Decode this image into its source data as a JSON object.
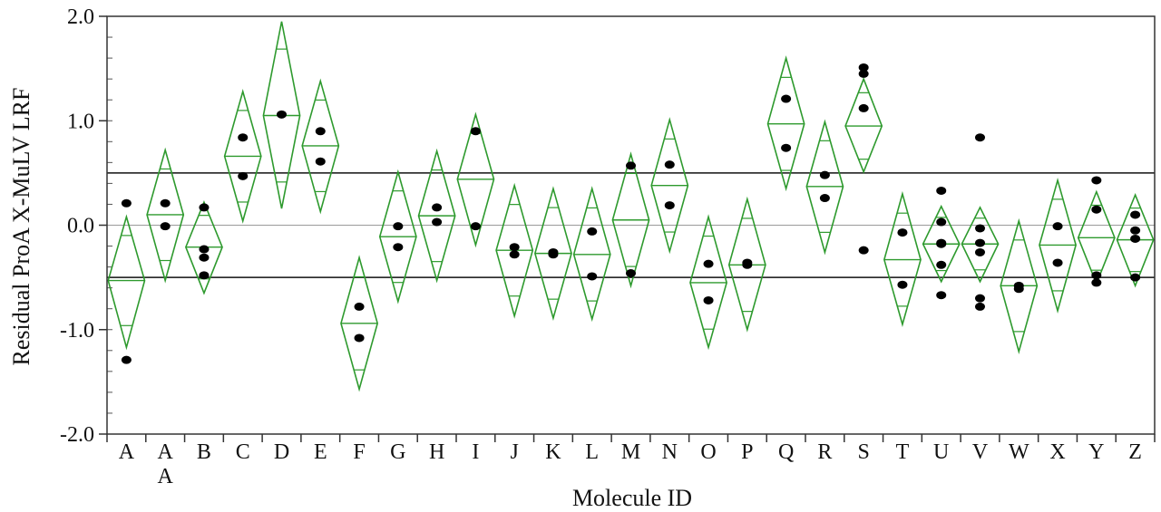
{
  "chart_data": {
    "type": "scatter",
    "title": "",
    "xlabel": "Molecule ID",
    "ylabel": "Residual ProA X-MuLV LRF",
    "ylim": [
      -2.0,
      2.0
    ],
    "yticks": [
      -2.0,
      -1.0,
      0.0,
      1.0,
      2.0
    ],
    "ytick_labels": [
      "-2.0",
      "-1.0",
      "0.0",
      "1.0",
      "2.0"
    ],
    "minor_ticks_per_major": 5,
    "reference_lines": [
      0.5,
      -0.5
    ],
    "grid": false,
    "diamond_color": "#2e9a2e",
    "point_color": "#000000",
    "groups": [
      {
        "label": "A",
        "mean": -0.53,
        "upper": 0.08,
        "lower": -1.17,
        "points": [
          0.21,
          -1.29
        ]
      },
      {
        "label": "A\nA",
        "mean": 0.1,
        "upper": 0.72,
        "lower": -0.53,
        "points": [
          0.21,
          -0.01
        ]
      },
      {
        "label": "B",
        "mean": -0.21,
        "upper": 0.22,
        "lower": -0.65,
        "points": [
          0.17,
          -0.23,
          -0.31,
          -0.48
        ]
      },
      {
        "label": "C",
        "mean": 0.66,
        "upper": 1.28,
        "lower": 0.04,
        "points": [
          0.84,
          0.47
        ]
      },
      {
        "label": "D",
        "mean": 1.05,
        "upper": 1.95,
        "lower": 0.16,
        "points": [
          1.06
        ]
      },
      {
        "label": "E",
        "mean": 0.76,
        "upper": 1.38,
        "lower": 0.13,
        "points": [
          0.9,
          0.61
        ]
      },
      {
        "label": "F",
        "mean": -0.94,
        "upper": -0.31,
        "lower": -1.57,
        "points": [
          -0.78,
          -1.08
        ]
      },
      {
        "label": "G",
        "mean": -0.11,
        "upper": 0.51,
        "lower": -0.73,
        "points": [
          -0.01,
          -0.21
        ]
      },
      {
        "label": "H",
        "mean": 0.09,
        "upper": 0.71,
        "lower": -0.53,
        "points": [
          0.17,
          0.03
        ]
      },
      {
        "label": "I",
        "mean": 0.44,
        "upper": 1.06,
        "lower": -0.19,
        "points": [
          0.9,
          -0.01
        ]
      },
      {
        "label": "J",
        "mean": -0.24,
        "upper": 0.38,
        "lower": -0.87,
        "points": [
          -0.21,
          -0.28
        ]
      },
      {
        "label": "K",
        "mean": -0.27,
        "upper": 0.35,
        "lower": -0.89,
        "points": [
          -0.26,
          -0.28
        ]
      },
      {
        "label": "L",
        "mean": -0.28,
        "upper": 0.35,
        "lower": -0.9,
        "points": [
          -0.06,
          -0.49
        ]
      },
      {
        "label": "M",
        "mean": 0.05,
        "upper": 0.68,
        "lower": -0.58,
        "points": [
          0.57,
          -0.46
        ]
      },
      {
        "label": "N",
        "mean": 0.38,
        "upper": 1.01,
        "lower": -0.25,
        "points": [
          0.58,
          0.19
        ]
      },
      {
        "label": "O",
        "mean": -0.55,
        "upper": 0.08,
        "lower": -1.17,
        "points": [
          -0.37,
          -0.72
        ]
      },
      {
        "label": "P",
        "mean": -0.38,
        "upper": 0.25,
        "lower": -1.0,
        "points": [
          -0.36,
          -0.38
        ]
      },
      {
        "label": "Q",
        "mean": 0.97,
        "upper": 1.6,
        "lower": 0.35,
        "points": [
          1.21,
          0.74
        ]
      },
      {
        "label": "R",
        "mean": 0.37,
        "upper": 0.99,
        "lower": -0.26,
        "points": [
          0.48,
          0.26
        ]
      },
      {
        "label": "S",
        "mean": 0.95,
        "upper": 1.4,
        "lower": 0.51,
        "points": [
          1.51,
          1.45,
          1.12,
          -0.24
        ]
      },
      {
        "label": "T",
        "mean": -0.33,
        "upper": 0.3,
        "lower": -0.95,
        "points": [
          -0.07,
          -0.57
        ]
      },
      {
        "label": "U",
        "mean": -0.18,
        "upper": 0.18,
        "lower": -0.54,
        "points": [
          0.33,
          0.03,
          -0.17,
          -0.18,
          -0.38,
          -0.67
        ]
      },
      {
        "label": "V",
        "mean": -0.18,
        "upper": 0.17,
        "lower": -0.54,
        "points": [
          0.84,
          -0.03,
          -0.17,
          -0.26,
          -0.7,
          -0.78
        ]
      },
      {
        "label": "W",
        "mean": -0.58,
        "upper": 0.04,
        "lower": -1.21,
        "points": [
          -0.58,
          -0.61
        ]
      },
      {
        "label": "X",
        "mean": -0.19,
        "upper": 0.43,
        "lower": -0.82,
        "points": [
          -0.01,
          -0.36
        ]
      },
      {
        "label": "Y",
        "mean": -0.12,
        "upper": 0.32,
        "lower": -0.56,
        "points": [
          0.43,
          0.15,
          -0.48,
          -0.55
        ]
      },
      {
        "label": "Z",
        "mean": -0.14,
        "upper": 0.29,
        "lower": -0.58,
        "points": [
          0.1,
          -0.05,
          -0.13,
          -0.5
        ]
      }
    ]
  }
}
